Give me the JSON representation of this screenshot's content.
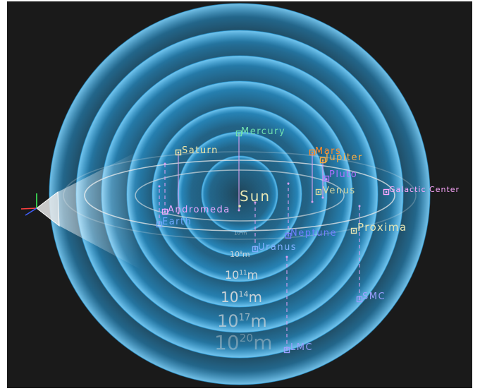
{
  "colors": {
    "background": "#1a1a1a",
    "sphere": "#2aa4e6",
    "plane": "#e8e8e8",
    "stem": "#d9a0f0"
  },
  "scale_labels": [
    {
      "base": "10",
      "exp": "8",
      "unit": "m"
    },
    {
      "base": "10",
      "exp": "8",
      "unit": "m"
    },
    {
      "base": "10",
      "exp": "11",
      "unit": "m"
    },
    {
      "base": "10",
      "exp": "14",
      "unit": "m"
    },
    {
      "base": "10",
      "exp": "17",
      "unit": "m"
    },
    {
      "base": "10",
      "exp": "20",
      "unit": "m"
    }
  ],
  "objects": [
    {
      "id": "sun",
      "label": "Sun",
      "color": "#e6e6b4",
      "icon": "star-marker-icon"
    },
    {
      "id": "mercury",
      "label": "Mercury",
      "color": "#6fe0b0",
      "icon": "planet-marker-icon"
    },
    {
      "id": "saturn",
      "label": "Saturn",
      "color": "#f0e6a8",
      "icon": "planet-marker-icon"
    },
    {
      "id": "mars",
      "label": "Mars",
      "color": "#ff8a2a",
      "icon": "planet-marker-icon"
    },
    {
      "id": "jupiter",
      "label": "Jupiter",
      "color": "#ffb040",
      "icon": "planet-marker-icon"
    },
    {
      "id": "pluto",
      "label": "Pluto",
      "color": "#b070ff",
      "icon": "planet-marker-icon"
    },
    {
      "id": "venus",
      "label": "Venus",
      "color": "#d8d8a0",
      "icon": "planet-marker-icon"
    },
    {
      "id": "andromeda",
      "label": "Andromeda",
      "color": "#e8a8ff",
      "icon": "galaxy-marker-icon"
    },
    {
      "id": "earth",
      "label": "Earth",
      "color": "#70a8ff",
      "icon": "planet-marker-icon"
    },
    {
      "id": "neptune",
      "label": "Neptune",
      "color": "#7080ff",
      "icon": "planet-marker-icon"
    },
    {
      "id": "uranus",
      "label": "Uranus",
      "color": "#80b0ff",
      "icon": "planet-marker-icon"
    },
    {
      "id": "proxima",
      "label": "Proxima",
      "color": "#e6e6b4",
      "icon": "star-marker-icon"
    },
    {
      "id": "galactic_center",
      "label": "Galactic Center",
      "color": "#ffa8ff",
      "icon": "galaxy-marker-icon"
    },
    {
      "id": "smc",
      "label": "SMC",
      "color": "#9aa0ff",
      "icon": "galaxy-marker-icon"
    },
    {
      "id": "lmc",
      "label": "LMC",
      "color": "#9aa0ff",
      "icon": "galaxy-marker-icon"
    }
  ]
}
